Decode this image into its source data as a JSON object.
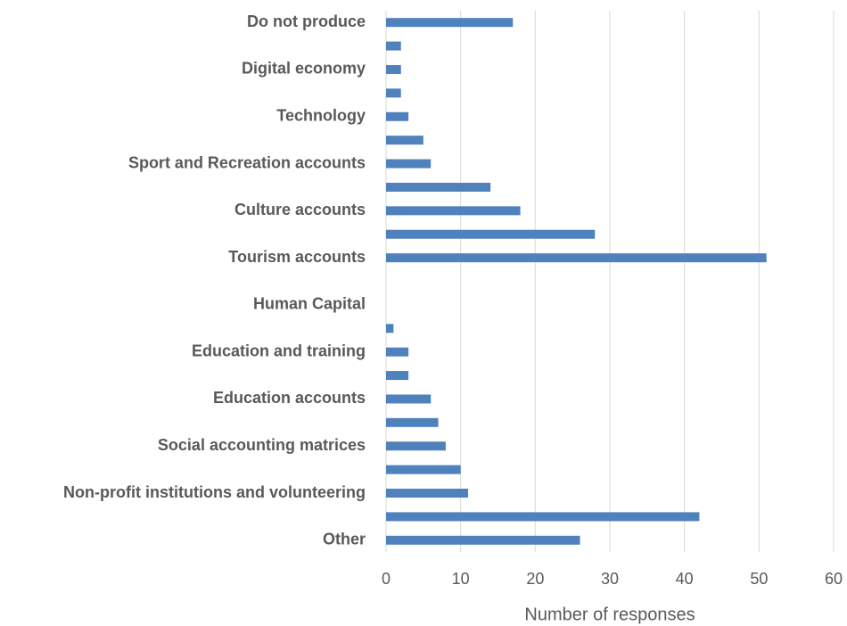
{
  "chart_data": {
    "type": "barh",
    "categories": [
      "Do not produce",
      null,
      "Digital economy",
      null,
      "Technology",
      null,
      "Sport and Recreation accounts",
      null,
      "Culture accounts",
      null,
      "Tourism accounts",
      null,
      "Human Capital",
      null,
      "Education and training",
      null,
      "Education accounts",
      null,
      "Social accounting matrices",
      null,
      "Non-profit institutions and volunteering",
      null,
      "Other"
    ],
    "values": [
      17,
      2,
      2,
      2,
      3,
      5,
      6,
      14,
      18,
      28,
      51,
      0,
      0,
      1,
      3,
      3,
      6,
      7,
      8,
      10,
      11,
      42,
      26
    ],
    "color": "#4f81bd",
    "x_label": "Number of responses",
    "xlim": [
      0,
      60
    ],
    "xticks": [
      0,
      10,
      20,
      30,
      40,
      50,
      60
    ],
    "grid": true
  }
}
